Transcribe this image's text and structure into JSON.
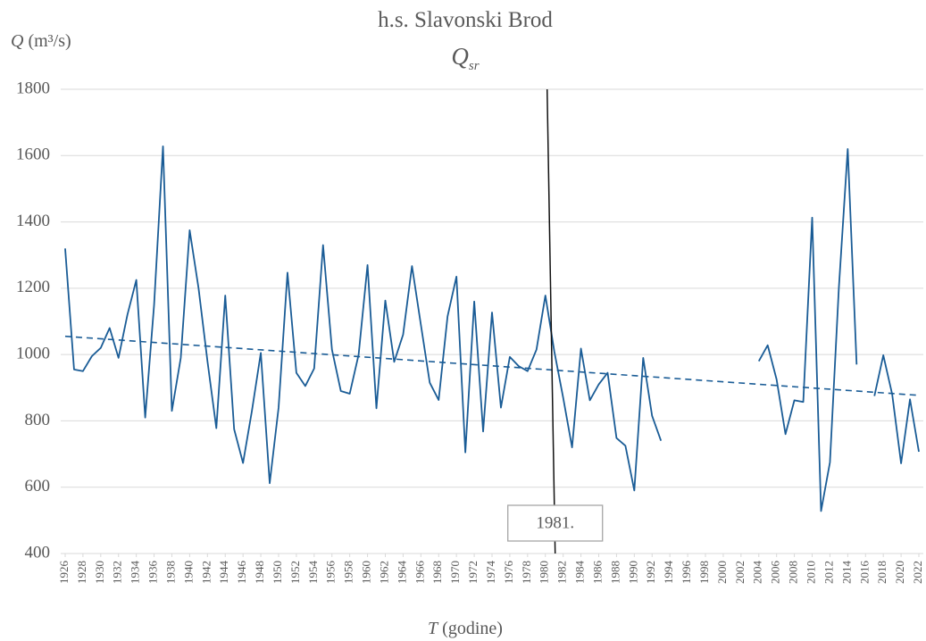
{
  "chart_data": {
    "type": "line",
    "title": "h.s. Slavonski Brod",
    "subtitle": {
      "symbol": "Q",
      "subscript": "sr"
    },
    "ylabel": {
      "symbol": "Q",
      "unit": "(m³/s)"
    },
    "xlabel": {
      "symbol": "T",
      "unit": "(godine)"
    },
    "x": [
      1926,
      1927,
      1928,
      1929,
      1930,
      1931,
      1932,
      1933,
      1934,
      1935,
      1936,
      1937,
      1938,
      1939,
      1940,
      1941,
      1942,
      1943,
      1944,
      1945,
      1946,
      1947,
      1948,
      1949,
      1950,
      1951,
      1952,
      1953,
      1954,
      1955,
      1956,
      1957,
      1958,
      1959,
      1960,
      1961,
      1962,
      1963,
      1964,
      1965,
      1966,
      1967,
      1968,
      1969,
      1970,
      1971,
      1972,
      1973,
      1974,
      1975,
      1976,
      1977,
      1978,
      1979,
      1980,
      1981,
      1982,
      1983,
      1984,
      1985,
      1986,
      1987,
      1988,
      1989,
      1990,
      1991,
      1992,
      1993,
      1994,
      1995,
      1996,
      1997,
      1998,
      1999,
      2000,
      2001,
      2002,
      2003,
      2004,
      2005,
      2006,
      2007,
      2008,
      2009,
      2010,
      2011,
      2012,
      2013,
      2014,
      2015,
      2016,
      2017,
      2018,
      2019,
      2020,
      2021,
      2022
    ],
    "series": [
      {
        "color": "#1a5c96",
        "values": [
          1320,
          955,
          950,
          995,
          1020,
          1080,
          990,
          1120,
          1225,
          810,
          1150,
          1628,
          830,
          990,
          1375,
          1200,
          980,
          778,
          1178,
          775,
          673,
          830,
          1005,
          612,
          840,
          1247,
          945,
          905,
          958,
          1330,
          1015,
          890,
          882,
          1000,
          1270,
          838,
          1163,
          978,
          1060,
          1267,
          1090,
          915,
          863,
          1115,
          1235,
          705,
          1160,
          768,
          1127,
          840,
          993,
          965,
          950,
          1015,
          1178,
          1010,
          870,
          720,
          1018,
          862,
          910,
          945,
          748,
          725,
          590,
          990,
          815,
          740,
          null,
          null,
          null,
          null,
          null,
          null,
          null,
          null,
          null,
          null,
          980,
          1028,
          925,
          760,
          862,
          857,
          1413,
          528,
          675,
          1200,
          1620,
          970,
          null,
          875,
          998,
          880,
          672,
          865,
          707
        ]
      }
    ],
    "trendline": {
      "x": [
        1926,
        2022
      ],
      "values": [
        1055,
        877
      ],
      "color": "#1a5c96"
    },
    "annotation": {
      "text": "1981.",
      "x": 1981
    },
    "xlim": [
      1925.5,
      2022.5
    ],
    "xticks": [
      1926,
      1928,
      1930,
      1932,
      1934,
      1936,
      1938,
      1940,
      1942,
      1944,
      1946,
      1948,
      1950,
      1952,
      1954,
      1956,
      1958,
      1960,
      1962,
      1964,
      1966,
      1968,
      1970,
      1972,
      1974,
      1976,
      1978,
      1980,
      1982,
      1984,
      1986,
      1988,
      1990,
      1992,
      1994,
      1996,
      1998,
      2000,
      2002,
      2004,
      2006,
      2008,
      2010,
      2012,
      2014,
      2016,
      2018,
      2020,
      2022
    ],
    "ylim": [
      400,
      1800
    ],
    "yticks": [
      400,
      600,
      800,
      1000,
      1200,
      1400,
      1600,
      1800
    ],
    "grid": true
  }
}
